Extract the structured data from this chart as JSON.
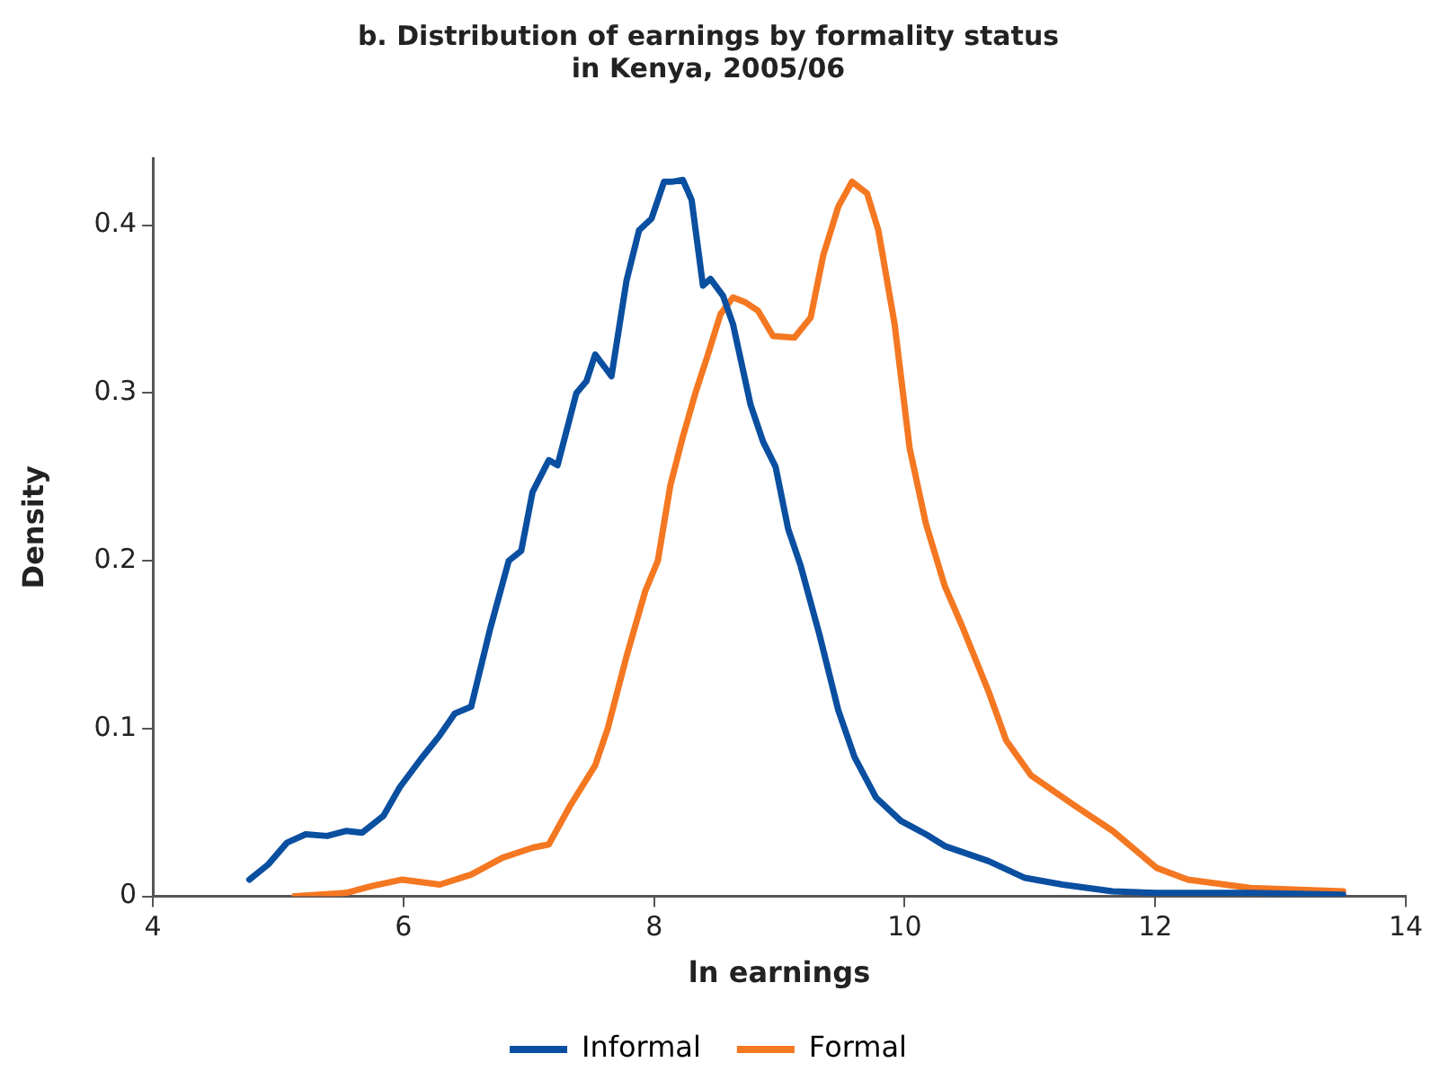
{
  "chart_data": {
    "type": "line",
    "title": "b. Distribution of earnings by formality status\nin Kenya, 2005/06",
    "xlabel": "ln earnings",
    "ylabel": "Density",
    "xlim": [
      4,
      14
    ],
    "xticks": [
      4,
      6,
      8,
      10,
      12,
      14
    ],
    "ylim": [
      0,
      0.44
    ],
    "yticks": [
      0,
      0.1,
      0.2,
      0.3,
      0.4
    ],
    "grid": false,
    "legend": "bottom",
    "marker": "none",
    "line_style": "solid",
    "series": [
      {
        "name": "Informal",
        "color": "#0a4fa0",
        "x": [
          4.77,
          4.92,
          5.07,
          5.22,
          5.39,
          5.54,
          5.67,
          5.84,
          5.97,
          6.14,
          6.29,
          6.41,
          6.54,
          6.69,
          6.84,
          6.94,
          7.03,
          7.16,
          7.23,
          7.38,
          7.46,
          7.53,
          7.66,
          7.78,
          7.88,
          7.98,
          8.08,
          8.15,
          8.23,
          8.3,
          8.39,
          8.45,
          8.55,
          8.63,
          8.77,
          8.87,
          8.97,
          9.07,
          9.17,
          9.32,
          9.47,
          9.6,
          9.77,
          9.97,
          10.17,
          10.32,
          10.67,
          10.96,
          11.26,
          11.66,
          12.01,
          12.76,
          13.5
        ],
        "values": [
          0.01,
          0.019,
          0.032,
          0.037,
          0.036,
          0.039,
          0.038,
          0.048,
          0.065,
          0.082,
          0.096,
          0.109,
          0.113,
          0.159,
          0.2,
          0.206,
          0.241,
          0.26,
          0.257,
          0.3,
          0.307,
          0.323,
          0.31,
          0.367,
          0.397,
          0.404,
          0.426,
          0.426,
          0.427,
          0.415,
          0.364,
          0.368,
          0.358,
          0.341,
          0.293,
          0.271,
          0.256,
          0.219,
          0.197,
          0.156,
          0.111,
          0.083,
          0.059,
          0.045,
          0.037,
          0.03,
          0.021,
          0.011,
          0.007,
          0.003,
          0.002,
          0.002,
          0.001
        ]
      },
      {
        "name": "Formal",
        "color": "#f47721",
        "x": [
          5.13,
          5.54,
          5.74,
          5.99,
          6.29,
          6.54,
          6.79,
          7.03,
          7.16,
          7.33,
          7.53,
          7.63,
          7.78,
          7.93,
          8.03,
          8.13,
          8.23,
          8.33,
          8.43,
          8.53,
          8.63,
          8.73,
          8.83,
          8.95,
          9.12,
          9.25,
          9.35,
          9.47,
          9.58,
          9.7,
          9.79,
          9.92,
          10.04,
          10.17,
          10.32,
          10.47,
          10.67,
          10.81,
          11.01,
          11.36,
          11.66,
          12.01,
          12.26,
          12.76,
          13.5
        ],
        "values": [
          0.0,
          0.002,
          0.006,
          0.01,
          0.007,
          0.013,
          0.023,
          0.029,
          0.031,
          0.054,
          0.078,
          0.1,
          0.143,
          0.182,
          0.2,
          0.245,
          0.274,
          0.3,
          0.323,
          0.347,
          0.357,
          0.354,
          0.349,
          0.334,
          0.333,
          0.345,
          0.382,
          0.411,
          0.426,
          0.419,
          0.397,
          0.341,
          0.267,
          0.222,
          0.185,
          0.159,
          0.122,
          0.093,
          0.072,
          0.054,
          0.039,
          0.017,
          0.01,
          0.005,
          0.003
        ]
      }
    ]
  }
}
